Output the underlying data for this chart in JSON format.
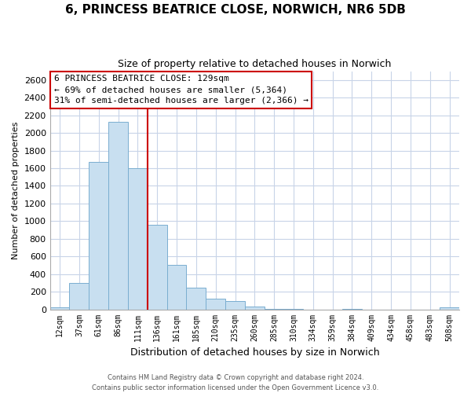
{
  "title": "6, PRINCESS BEATRICE CLOSE, NORWICH, NR6 5DB",
  "subtitle": "Size of property relative to detached houses in Norwich",
  "xlabel": "Distribution of detached houses by size in Norwich",
  "ylabel": "Number of detached properties",
  "bin_labels": [
    "12sqm",
    "37sqm",
    "61sqm",
    "86sqm",
    "111sqm",
    "136sqm",
    "161sqm",
    "185sqm",
    "210sqm",
    "235sqm",
    "260sqm",
    "285sqm",
    "310sqm",
    "334sqm",
    "359sqm",
    "384sqm",
    "409sqm",
    "434sqm",
    "458sqm",
    "483sqm",
    "508sqm"
  ],
  "bar_heights": [
    20,
    295,
    1670,
    2130,
    1600,
    960,
    505,
    250,
    120,
    95,
    35,
    5,
    5,
    0,
    0,
    5,
    0,
    0,
    0,
    0,
    20
  ],
  "bar_color": "#c8dff0",
  "bar_edge_color": "#7aaed0",
  "vline_x": 5,
  "vline_color": "#cc0000",
  "ylim": [
    0,
    2700
  ],
  "yticks": [
    0,
    200,
    400,
    600,
    800,
    1000,
    1200,
    1400,
    1600,
    1800,
    2000,
    2200,
    2400,
    2600
  ],
  "annotation_title": "6 PRINCESS BEATRICE CLOSE: 129sqm",
  "annotation_line1": "← 69% of detached houses are smaller (5,364)",
  "annotation_line2": "31% of semi-detached houses are larger (2,366) →",
  "annotation_box_color": "#ffffff",
  "annotation_box_edge": "#cc0000",
  "footer_line1": "Contains HM Land Registry data © Crown copyright and database right 2024.",
  "footer_line2": "Contains public sector information licensed under the Open Government Licence v3.0.",
  "background_color": "#ffffff",
  "grid_color": "#c8d4e8"
}
